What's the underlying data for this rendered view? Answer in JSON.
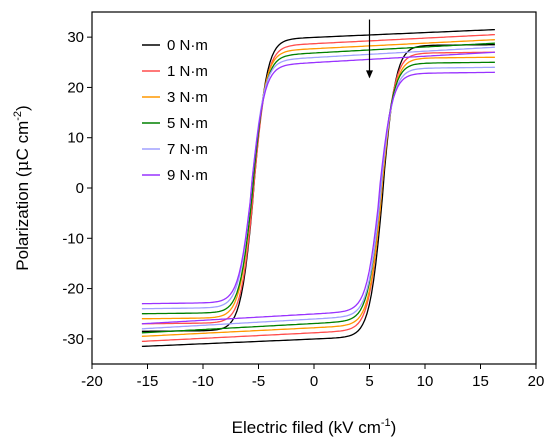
{
  "chart_data": {
    "type": "line",
    "title": "",
    "xlabel": "Electric filed (kV cm",
    "xlabel_sup": "-1",
    "xlabel_close": ")",
    "ylabel": "Polarization (",
    "ylabel_mu": "μ",
    "ylabel_unit": "C cm",
    "ylabel_sup": "-2",
    "ylabel_close": ")",
    "xlim": [
      -20,
      20
    ],
    "ylim": [
      -35,
      35
    ],
    "xticks": [
      -20,
      -15,
      -10,
      -5,
      0,
      5,
      10,
      15,
      20
    ],
    "yticks": [
      -30,
      -20,
      -10,
      0,
      10,
      20,
      30
    ],
    "grid": false,
    "legend_position": "top-left",
    "annotation": "downward arrow at x≈5 indicating decreasing polarization with increasing torque",
    "series": [
      {
        "name": "0 N·m",
        "color": "#000000",
        "Pmax": 31.5,
        "Ec": 6.2,
        "Ec_neg": -5.4,
        "Ps_pos": 28.5,
        "Ps_neg": -28.5
      },
      {
        "name": "1 N·m",
        "color": "#ff4d4d",
        "Pmax": 30.5,
        "Ec": 6.1,
        "Ec_neg": -5.4,
        "Ps_pos": 27.0,
        "Ps_neg": -27.0
      },
      {
        "name": "3 N·m",
        "color": "#ff9900",
        "Pmax": 29.5,
        "Ec": 6.1,
        "Ec_neg": -5.5,
        "Ps_pos": 26.0,
        "Ps_neg": -26.0
      },
      {
        "name": "5 N·m",
        "color": "#008000",
        "Pmax": 28.8,
        "Ec": 6.0,
        "Ec_neg": -5.5,
        "Ps_pos": 25.0,
        "Ps_neg": -25.0
      },
      {
        "name": "7 N·m",
        "color": "#a0a0ff",
        "Pmax": 28.0,
        "Ec": 6.0,
        "Ec_neg": -5.6,
        "Ps_pos": 24.0,
        "Ps_neg": -24.0
      },
      {
        "name": "9 N·m",
        "color": "#9933ff",
        "Pmax": 27.0,
        "Ec": 5.9,
        "Ec_neg": -5.6,
        "Ps_pos": 23.0,
        "Ps_neg": -23.0
      }
    ],
    "x_range": [
      -15.5,
      16.3
    ]
  }
}
